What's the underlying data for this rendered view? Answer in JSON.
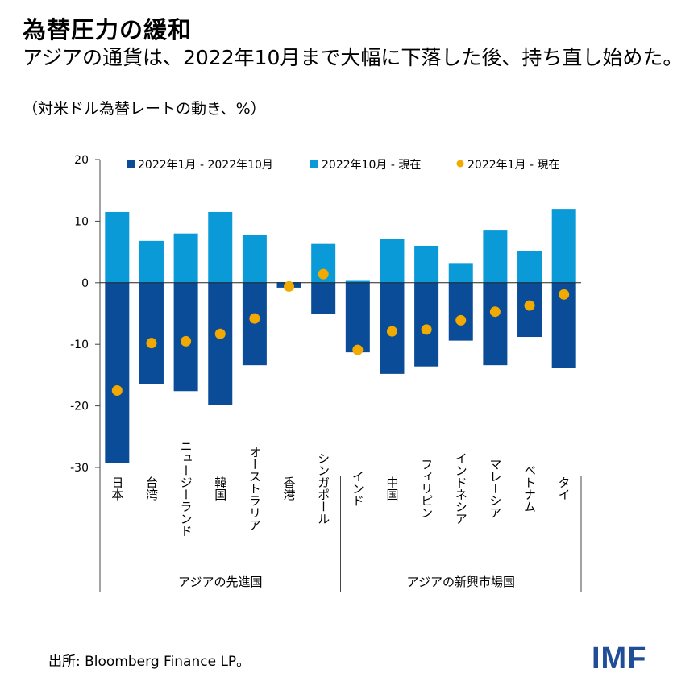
{
  "title": "為替圧力の緩和",
  "subtitle": "アジアの通貨は、2022年10月まで大幅に下落した後、持ち直し始めた。",
  "units": "（対米ドル為替レートの動き、%）",
  "source": "出所: Bloomberg Finance LP。",
  "logo": "IMF",
  "colors": {
    "dark": "#0a4c97",
    "light": "#0a9ad8",
    "dot": "#f2a900"
  },
  "chart_data": {
    "type": "bar",
    "stacked": true,
    "ylim": [
      -30,
      20
    ],
    "yticks": [
      "20",
      "10",
      "0",
      "-10",
      "-20",
      "-30"
    ],
    "categories": [
      "日本",
      "台湾",
      "ニュージーランド",
      "韓国",
      "オーストラリア",
      "香港",
      "シンガポール",
      "インド",
      "中国",
      "フィリピン",
      "インドネシア",
      "マレーシア",
      "ベトナム",
      "タイ"
    ],
    "groups": [
      {
        "label": "アジアの先進国",
        "count": 7
      },
      {
        "label": "アジアの新興市場国",
        "count": 7
      }
    ],
    "legend_position": "top",
    "series": [
      {
        "name": "2022年1月 - 2022年10月",
        "type": "bar",
        "color": "#0a4c97",
        "values": [
          -29.3,
          -16.5,
          -17.6,
          -19.8,
          -13.4,
          -0.8,
          -5.0,
          -11.3,
          -14.8,
          -13.6,
          -9.4,
          -13.4,
          -8.8,
          -13.9
        ]
      },
      {
        "name": "2022年10月 - 現在",
        "type": "bar",
        "color": "#0a9ad8",
        "values": [
          11.5,
          6.8,
          8.0,
          11.5,
          7.7,
          0.1,
          6.3,
          0.3,
          7.1,
          6.0,
          3.2,
          8.6,
          5.1,
          12.0
        ]
      },
      {
        "name": "2022年1月 - 現在",
        "type": "scatter",
        "color": "#f2a900",
        "values": [
          -17.5,
          -9.8,
          -9.5,
          -8.3,
          -5.8,
          -0.6,
          1.4,
          -10.9,
          -7.9,
          -7.6,
          -6.1,
          -4.7,
          -3.7,
          -1.9
        ]
      }
    ]
  }
}
